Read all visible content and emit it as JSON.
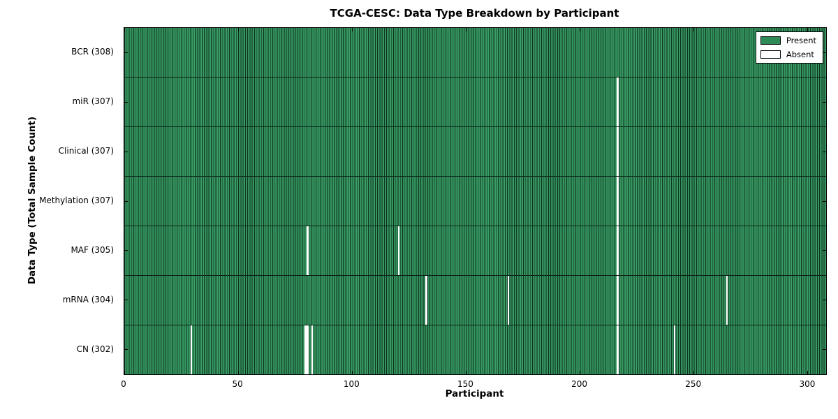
{
  "colors": {
    "present": "#2e8b57",
    "present_light": "#3f9e68",
    "absent": "#ffffff",
    "bar_edge": "#0e3320",
    "row_separator": "#0a2416",
    "spine": "#000000"
  },
  "chart_data": {
    "type": "heatmap",
    "title": "TCGA-CESC: Data Type Breakdown by Participant",
    "xlabel": "Participant",
    "ylabel": "Data Type (Total Sample Count)",
    "n_participants": 308,
    "xlim": [
      0,
      308
    ],
    "x_ticks": [
      0,
      50,
      100,
      150,
      200,
      250,
      300
    ],
    "grid": false,
    "legend_position": "upper right",
    "legend_entries": [
      {
        "label": "Present",
        "color": "#2e8b57"
      },
      {
        "label": "Absent",
        "color": "#ffffff"
      }
    ],
    "rows": [
      {
        "label": "BCR (308)",
        "data_type": "BCR",
        "present_count": 308,
        "absent_participants": []
      },
      {
        "label": "miR (307)",
        "data_type": "miR",
        "present_count": 307,
        "absent_participants": [
          216
        ]
      },
      {
        "label": "Clinical (307)",
        "data_type": "Clinical",
        "present_count": 307,
        "absent_participants": [
          216
        ]
      },
      {
        "label": "Methylation (307)",
        "data_type": "Methylation",
        "present_count": 307,
        "absent_participants": [
          216
        ]
      },
      {
        "label": "MAF (305)",
        "data_type": "MAF",
        "present_count": 305,
        "absent_participants": [
          80,
          120,
          216
        ]
      },
      {
        "label": "mRNA (304)",
        "data_type": "mRNA",
        "present_count": 304,
        "absent_participants": [
          132,
          168,
          216,
          264
        ]
      },
      {
        "label": "CN (302)",
        "data_type": "CN",
        "present_count": 302,
        "absent_participants": [
          29,
          79,
          80,
          82,
          216,
          241
        ]
      }
    ]
  }
}
